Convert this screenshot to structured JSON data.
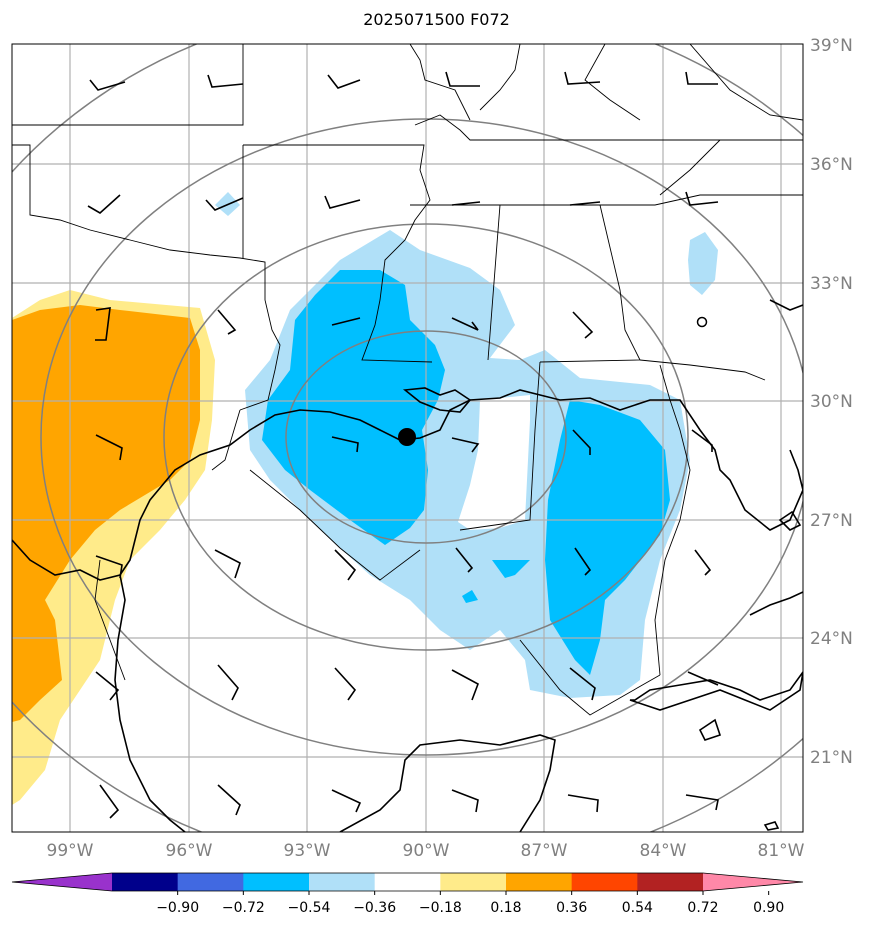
{
  "title": "2025071500 F072",
  "lat_ticks": [
    {
      "value": 39,
      "label": "39°N"
    },
    {
      "value": 36,
      "label": "36°N"
    },
    {
      "value": 33,
      "label": "33°N"
    },
    {
      "value": 30,
      "label": "30°N"
    },
    {
      "value": 27,
      "label": "27°N"
    },
    {
      "value": 24,
      "label": "24°N"
    },
    {
      "value": 21,
      "label": "21°N"
    }
  ],
  "lon_ticks": [
    {
      "value": -99,
      "label": "99°W"
    },
    {
      "value": -96,
      "label": "96°W"
    },
    {
      "value": -93,
      "label": "93°W"
    },
    {
      "value": -90,
      "label": "90°W"
    },
    {
      "value": -87,
      "label": "87°W"
    },
    {
      "value": -84,
      "label": "84°W"
    },
    {
      "value": -81,
      "label": "81°W"
    }
  ],
  "colorbar": {
    "colors": [
      "#9932cc",
      "#00008b",
      "#4169e1",
      "#00bfff",
      "#b0e0f8",
      "#ffffff",
      "#ffeb8a",
      "#ffa500",
      "#ff4500",
      "#b22222",
      "#ff88a8"
    ],
    "labels": [
      "−0.90",
      "−0.72",
      "−0.54",
      "−0.36",
      "−0.18",
      "0.18",
      "0.36",
      "0.54",
      "0.72",
      "0.90"
    ]
  },
  "center_marker": {
    "lat": 29.0,
    "lon": -90.6
  }
}
